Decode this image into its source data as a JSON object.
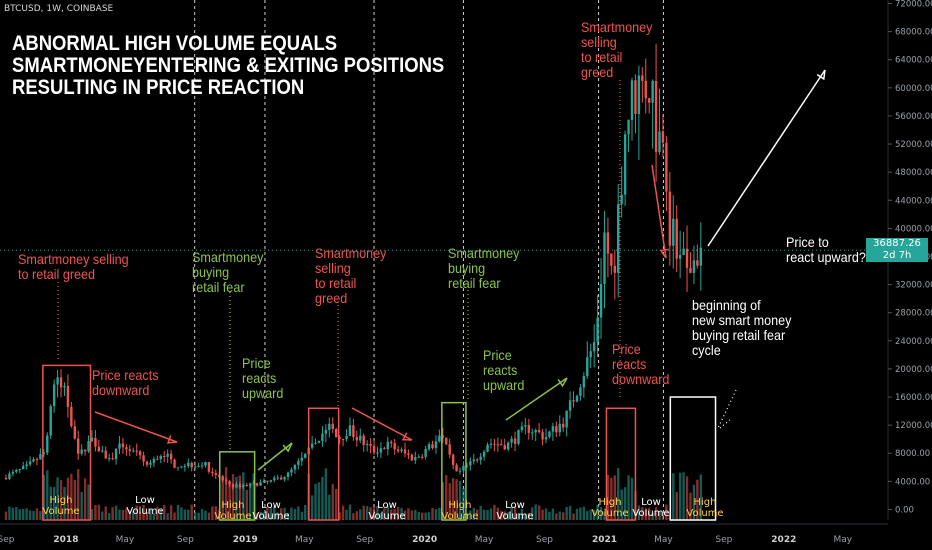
{
  "symbol": "BTCUSD, 1W, COINBASE",
  "title_lines": [
    "ABNORMAL HIGH VOLUME EQUALS",
    "SMARTMONEYENTERING & EXITING POSITIONS",
    "RESULTING IN PRICE REACTION"
  ],
  "colors": {
    "up": "#26a69a",
    "down": "#ef5350",
    "annotation_red": "#ef5350",
    "annotation_green": "#8bc34a",
    "volume_label": "#ffd23f"
  },
  "price_tag": {
    "price": "36887.26",
    "countdown": "2d 7h"
  },
  "annotations": {
    "a1": "Smartmoney selling\nto retail greed",
    "a2": "Price reacts\ndownward",
    "a3": "Smartmoney\nbuying\nretail fear",
    "a4": "Price\nreacts\nupward",
    "a5": "Smartmoney\nselling\nto retail\ngreed",
    "a6": "Smartmoney\nbuying\nretail fear",
    "a7": "Price\nreacts\nupward",
    "a8": "Smartmoney\nselling\nto retail\ngreed",
    "a9": "Price\nreacts\ndownward",
    "a10": "beginning of\nnew smart money\nbuying retail fear\ncycle",
    "a11": "Price to\nreact upward?"
  },
  "volume_labels": {
    "v1": "High\nVolume",
    "v2": "Low\nVolume",
    "v3": "High\nVolume",
    "v4": "Low\nVolume",
    "v5": "Low\nVolume",
    "v6": "High\nVolume",
    "v7": "Low\nVolume",
    "v8": "High\nVolume",
    "v9": "Low\nVolume",
    "v10": "High\nVolume"
  },
  "chart_data": {
    "type": "candlestick",
    "symbol": "BTCUSD",
    "interval": "1W",
    "exchange": "COINBASE",
    "ylim": [
      -1500,
      72500
    ],
    "y_ticks": [
      0,
      4000,
      8000,
      12000,
      16000,
      20000,
      24000,
      28000,
      32000,
      36000,
      40000,
      44000,
      48000,
      52000,
      56000,
      60000,
      64000,
      68000,
      72000
    ],
    "y_tick_labels": [
      "0.00",
      "4000.00",
      "8000.00",
      "12000.00",
      "16000.00",
      "20000.00",
      "24000.00",
      "28000.00",
      "32000.00",
      "36000.00",
      "40000.00",
      "44000.00",
      "48000.00",
      "52000.00",
      "56000.00",
      "60000.00",
      "64000.00",
      "68000.00",
      "72000.00"
    ],
    "x_range": [
      "2017-09-01",
      "2022-08-01"
    ],
    "x_ticks": [
      {
        "date": "2017-09-01",
        "label": "Sep"
      },
      {
        "date": "2018-01-01",
        "label": "2018"
      },
      {
        "date": "2018-05-01",
        "label": "May"
      },
      {
        "date": "2018-09-01",
        "label": "Sep"
      },
      {
        "date": "2019-01-01",
        "label": "2019"
      },
      {
        "date": "2019-05-01",
        "label": "May"
      },
      {
        "date": "2019-09-01",
        "label": "Sep"
      },
      {
        "date": "2020-01-01",
        "label": "2020"
      },
      {
        "date": "2020-05-01",
        "label": "May"
      },
      {
        "date": "2020-09-01",
        "label": "Sep"
      },
      {
        "date": "2021-01-01",
        "label": "2021"
      },
      {
        "date": "2021-05-01",
        "label": "May"
      },
      {
        "date": "2021-09-01",
        "label": "Sep"
      },
      {
        "date": "2022-01-01",
        "label": "2022"
      },
      {
        "date": "2022-05-01",
        "label": "May"
      }
    ],
    "last_price": 36887.26,
    "price_anchors": [
      [
        "2017-09-01",
        4500
      ],
      [
        "2017-10-20",
        6000
      ],
      [
        "2017-11-24",
        8000
      ],
      [
        "2017-12-15",
        18000
      ],
      [
        "2018-01-05",
        17000
      ],
      [
        "2018-02-05",
        7500
      ],
      [
        "2018-03-01",
        10500
      ],
      [
        "2018-04-05",
        7000
      ],
      [
        "2018-05-05",
        9300
      ],
      [
        "2018-06-25",
        6200
      ],
      [
        "2018-07-25",
        8200
      ],
      [
        "2018-08-15",
        6400
      ],
      [
        "2018-10-15",
        6500
      ],
      [
        "2018-11-20",
        4300
      ],
      [
        "2018-12-15",
        3300
      ],
      [
        "2019-01-20",
        3600
      ],
      [
        "2019-02-25",
        3900
      ],
      [
        "2019-04-05",
        5000
      ],
      [
        "2019-05-15",
        8000
      ],
      [
        "2019-06-26",
        12000
      ],
      [
        "2019-07-15",
        10000
      ],
      [
        "2019-08-05",
        11500
      ],
      [
        "2019-09-25",
        8300
      ],
      [
        "2019-10-26",
        9200
      ],
      [
        "2019-12-18",
        7200
      ],
      [
        "2020-02-12",
        10200
      ],
      [
        "2020-03-12",
        5000
      ],
      [
        "2020-04-20",
        7000
      ],
      [
        "2020-05-15",
        9500
      ],
      [
        "2020-06-25",
        9200
      ],
      [
        "2020-08-05",
        11700
      ],
      [
        "2020-09-10",
        10300
      ],
      [
        "2020-10-20",
        12800
      ],
      [
        "2020-11-20",
        18500
      ],
      [
        "2020-12-20",
        24000
      ],
      [
        "2021-01-08",
        39000
      ],
      [
        "2021-01-25",
        33000
      ],
      [
        "2021-02-20",
        55000
      ],
      [
        "2021-03-13",
        60000
      ],
      [
        "2021-04-14",
        61000
      ],
      [
        "2021-04-26",
        52000
      ],
      [
        "2021-05-10",
        56000
      ],
      [
        "2021-05-19",
        40000
      ],
      [
        "2021-06-10",
        37000
      ],
      [
        "2021-06-25",
        33500
      ],
      [
        "2021-07-10",
        35500
      ],
      [
        "2021-07-18",
        36887
      ]
    ],
    "volume_boxes_price": [
      {
        "from": "2017-11-15",
        "to": "2018-02-20",
        "low": 0,
        "high": 20500,
        "color": "#ef5350"
      },
      {
        "from": "2018-11-10",
        "to": "2019-01-20",
        "low": 0,
        "high": 8200,
        "color": "#8bc34a"
      },
      {
        "from": "2019-05-10",
        "to": "2019-07-10",
        "low": 0,
        "high": 14400,
        "color": "#ef5350"
      },
      {
        "from": "2020-02-05",
        "to": "2020-03-25",
        "low": 0,
        "high": 15200,
        "color": "#8bc34a"
      },
      {
        "from": "2021-01-05",
        "to": "2021-03-05",
        "low": 0,
        "high": 14400,
        "color": "#ef5350"
      },
      {
        "from": "2021-05-15",
        "to": "2021-08-15",
        "low": 0,
        "high": 16000,
        "color": "#ffffff"
      }
    ],
    "cycle_dividers": [
      "2018-09-20",
      "2019-02-10",
      "2019-09-20",
      "2020-03-20",
      "2020-12-20",
      "2021-05-01"
    ]
  }
}
